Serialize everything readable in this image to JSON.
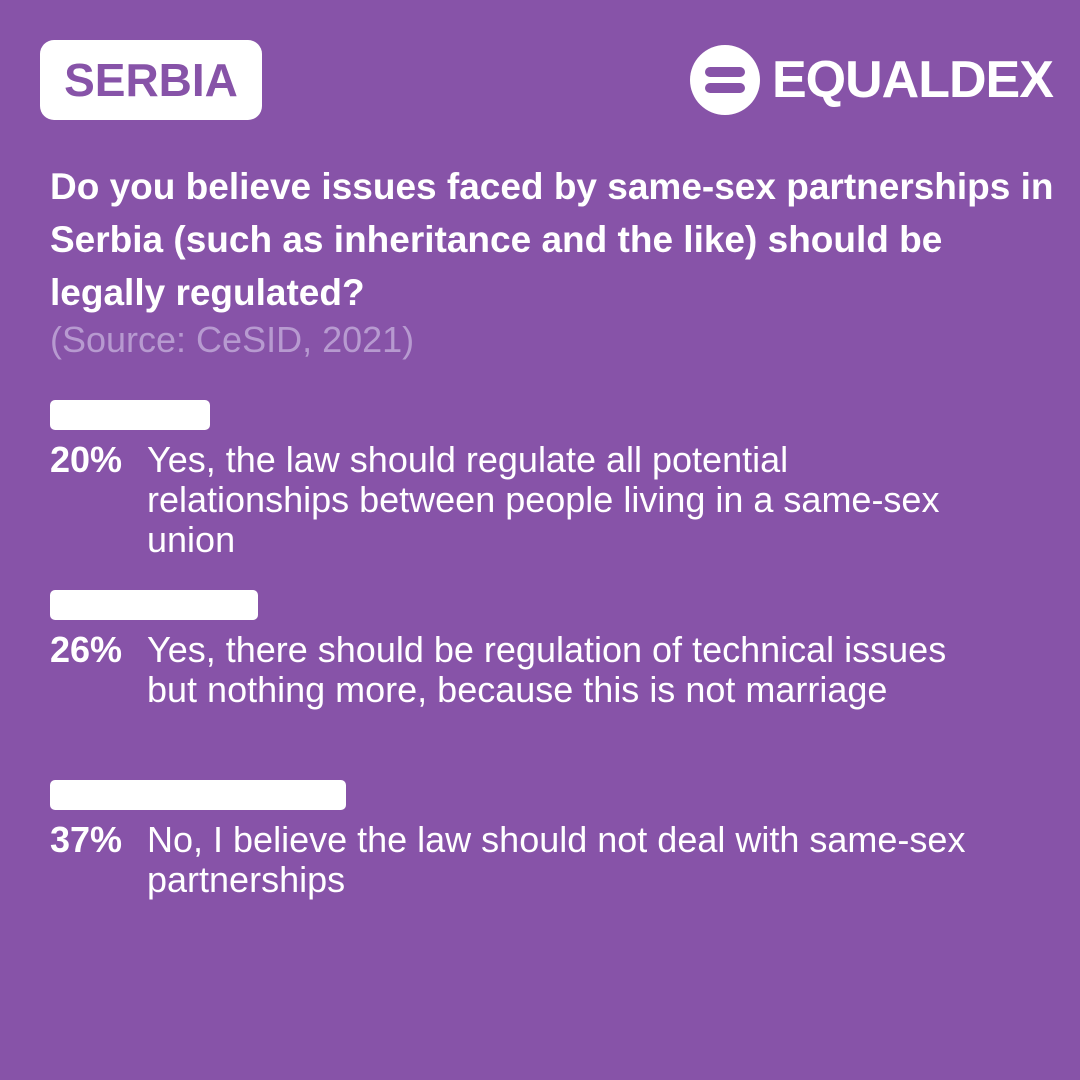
{
  "header": {
    "country": "SERBIA",
    "brand": "EQUALDEX"
  },
  "chart_data": {
    "type": "bar",
    "orientation": "horizontal",
    "title": "Do you believe issues faced by same-sex partnerships in Serbia (such as inheritance and the like) should be legally regulated?",
    "subtitle": "(Source: CeSID, 2021)",
    "categories": [
      "Yes, the law should regulate all potential relationships between people living in a same-sex union",
      "Yes, there should be regulation of technical issues but nothing more, because this is not marriage",
      "No, I believe the law should not deal with same-sex partnerships"
    ],
    "values": [
      20,
      26,
      37
    ],
    "value_labels": [
      "20%",
      "26%",
      "37%"
    ],
    "color": "#ffffff"
  }
}
